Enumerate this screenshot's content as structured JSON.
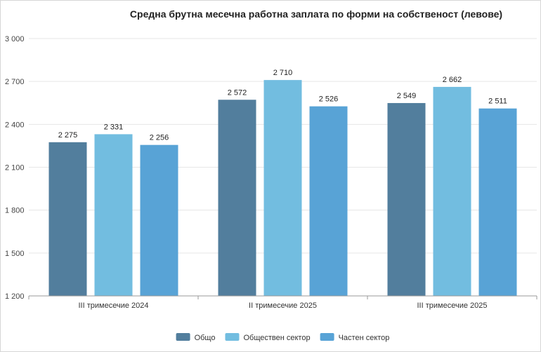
{
  "chart_data": {
    "type": "bar",
    "title": "Средна брутна месечна работна заплата по форми на собственост (левове)",
    "xlabel": "",
    "ylabel": "",
    "categories": [
      "III тримесечие 2024",
      "II тримесечие 2025",
      "III тримесечие 2025"
    ],
    "series": [
      {
        "name": "Общо",
        "values": [
          2275,
          2572,
          2549
        ],
        "labels": [
          "2 275",
          "2 572",
          "2 549"
        ],
        "color": "#527e9d"
      },
      {
        "name": "Обществен сектор",
        "values": [
          2331,
          2710,
          2662
        ],
        "labels": [
          "2 331",
          "2 710",
          "2 662"
        ],
        "color": "#72bde0"
      },
      {
        "name": "Частен сектор",
        "values": [
          2256,
          2526,
          2511
        ],
        "labels": [
          "2 256",
          "2 526",
          "2 511"
        ],
        "color": "#58a3d6"
      }
    ],
    "ylim": [
      1200,
      3000
    ],
    "yticks": [
      1200,
      1500,
      1800,
      2100,
      2400,
      2700,
      3000
    ],
    "ytick_labels": [
      "1 200",
      "1 500",
      "1 800",
      "2 100",
      "2 400",
      "2 700",
      "3 000"
    ],
    "grid": true,
    "legend": "bottom-center"
  }
}
